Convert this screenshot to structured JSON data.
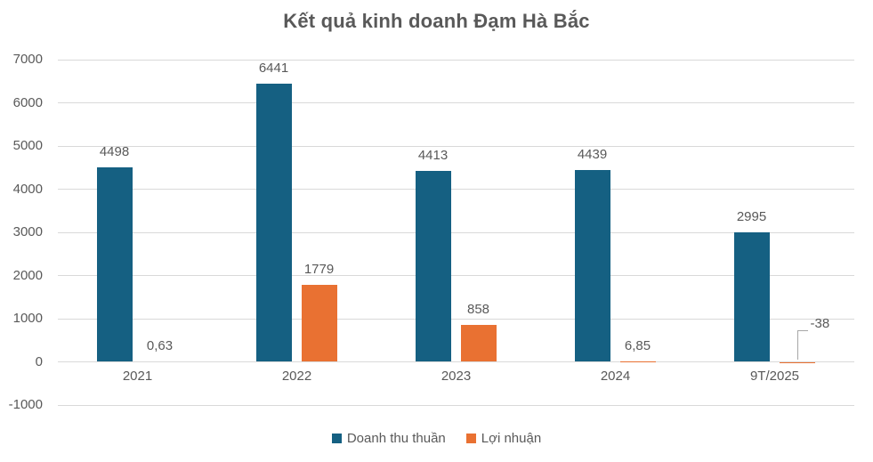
{
  "chart_data": {
    "type": "bar",
    "title": "Kết quả kinh doanh Đạm Hà Bắc",
    "categories": [
      "2021",
      "2022",
      "2023",
      "2024",
      "9T/2025"
    ],
    "series": [
      {
        "name": "Doanh thu thuần",
        "color": "#156082",
        "values": [
          4498,
          6441,
          4413,
          4439,
          2995
        ],
        "labels": [
          "4498",
          "6441",
          "4413",
          "4439",
          "2995"
        ],
        "callouts": [
          false,
          false,
          false,
          false,
          false
        ]
      },
      {
        "name": "Lợi nhuận",
        "color": "#E97132",
        "values": [
          0.63,
          1779,
          858,
          6.85,
          -38
        ],
        "labels": [
          "0,63",
          "1779",
          "858",
          "6,85",
          "-38"
        ],
        "callouts": [
          false,
          false,
          false,
          false,
          true
        ]
      }
    ],
    "ylim": [
      -1000,
      7000
    ],
    "yticks": [
      7000,
      6000,
      5000,
      4000,
      3000,
      2000,
      1000,
      0,
      -1000
    ],
    "grid": true,
    "legend_position": "bottom",
    "colors": {
      "grid": "#D9D9D9",
      "text": "#595959",
      "leader": "#A6A6A6"
    }
  }
}
